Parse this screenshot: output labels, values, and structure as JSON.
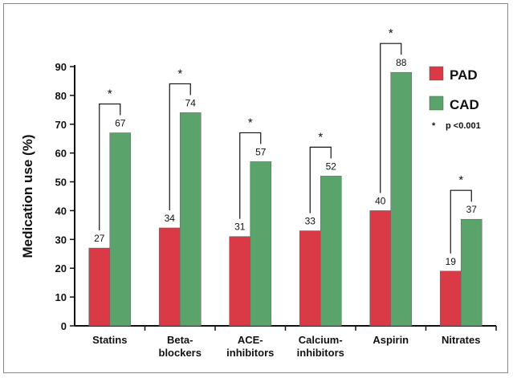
{
  "chart_data": {
    "type": "bar",
    "ylabel": "Medication use (%)",
    "xlabel": "",
    "title": "",
    "ylim": [
      0,
      90
    ],
    "yticks": [
      0,
      10,
      20,
      30,
      40,
      50,
      60,
      70,
      80,
      90
    ],
    "categories": [
      [
        "Statins"
      ],
      [
        "Beta-",
        "blockers"
      ],
      [
        "ACE-",
        "inhibitors"
      ],
      [
        "Calcium-",
        "inhibitors"
      ],
      [
        "Aspirin"
      ],
      [
        "Nitrates"
      ]
    ],
    "series": [
      {
        "name": "PAD",
        "color": "#d93a45",
        "values": [
          27,
          34,
          31,
          33,
          40,
          19
        ]
      },
      {
        "name": "CAD",
        "color": "#5aa36a",
        "values": [
          67,
          74,
          57,
          52,
          88,
          37
        ]
      }
    ],
    "significance_marker": "*",
    "significance_note": "p <0.001",
    "legend_position": "right",
    "grid": false
  }
}
